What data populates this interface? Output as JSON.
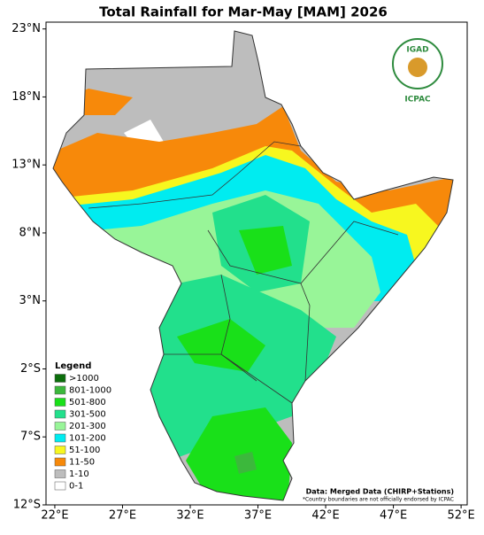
{
  "map": {
    "title": "Total Rainfall for Mar-May [MAM] 2026",
    "xlim": [
      21.35,
      52.45
    ],
    "ylim": [
      -12,
      23.5
    ],
    "xticks": [
      {
        "value": 22,
        "label": "22°E"
      },
      {
        "value": 27,
        "label": "27°E"
      },
      {
        "value": 32,
        "label": "32°E"
      },
      {
        "value": 37,
        "label": "37°E"
      },
      {
        "value": 42,
        "label": "42°E"
      },
      {
        "value": 47,
        "label": "47°E"
      },
      {
        "value": 52,
        "label": "52°E"
      }
    ],
    "yticks": [
      {
        "value": 23,
        "label": "23°N"
      },
      {
        "value": 18,
        "label": "18°N"
      },
      {
        "value": 13,
        "label": "13°N"
      },
      {
        "value": 8,
        "label": "8°N"
      },
      {
        "value": 3,
        "label": "3°N"
      },
      {
        "value": -2,
        "label": "2°S"
      },
      {
        "value": -7,
        "label": "7°S"
      },
      {
        "value": -12,
        "label": "12°S"
      }
    ],
    "legend": {
      "title": "Legend",
      "items": [
        {
          "label": ">1000",
          "color": "#0b6e0b"
        },
        {
          "label": "801-1000",
          "color": "#3cb83c"
        },
        {
          "label": "501-800",
          "color": "#19e019"
        },
        {
          "label": "301-500",
          "color": "#22e08c"
        },
        {
          "label": "201-300",
          "color": "#98f598"
        },
        {
          "label": "101-200",
          "color": "#00ecf0"
        },
        {
          "label": "51-100",
          "color": "#f7f71f"
        },
        {
          "label": "11-50",
          "color": "#f7890a"
        },
        {
          "label": "1-10",
          "color": "#bdbdbd"
        },
        {
          "label": "0-1",
          "color": "#ffffff"
        }
      ]
    },
    "source": "Data: Merged Data (CHIRP+Stations)",
    "footnote": "*Country boundaries are not officially endorsed by ICPAC",
    "logo": {
      "name": "IGAD",
      "org": "ICPAC"
    }
  }
}
